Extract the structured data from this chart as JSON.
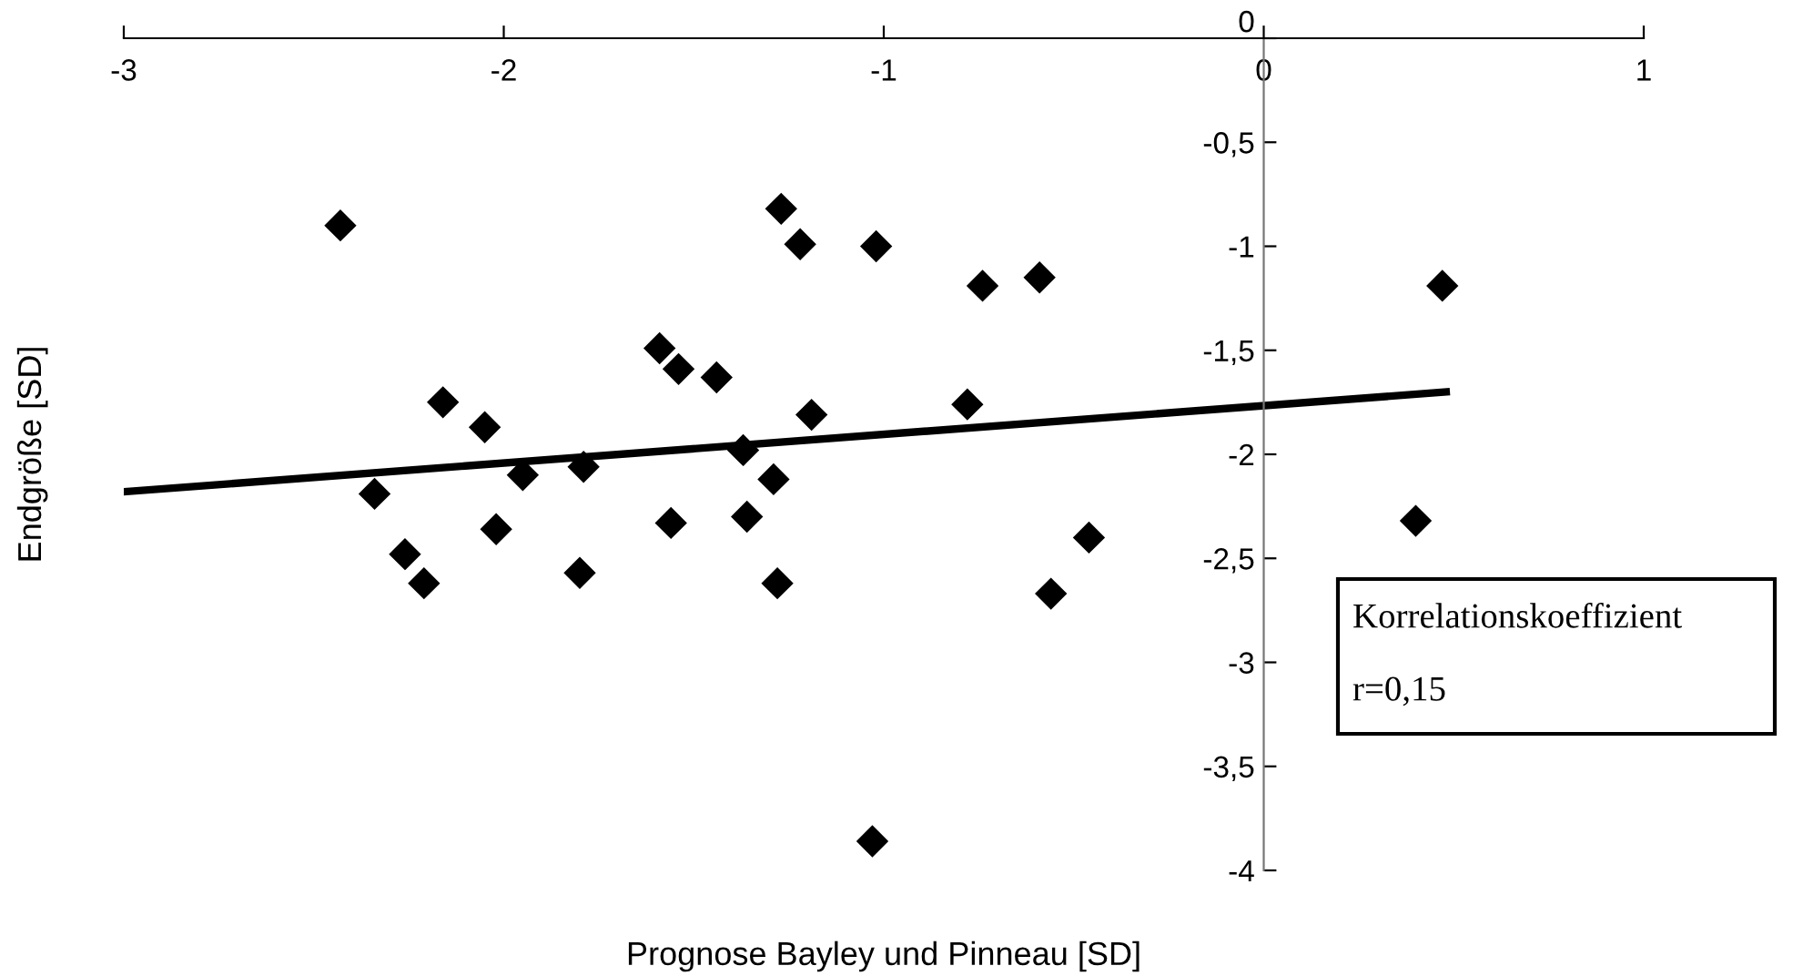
{
  "chart_data": {
    "type": "scatter",
    "xlabel": "Prognose Bayley und Pinneau [SD]",
    "ylabel": "Endgröße [SD]",
    "xlim": [
      -3,
      1
    ],
    "xticks": [
      -3,
      -2,
      -1,
      0,
      1
    ],
    "ylim": [
      -4,
      0
    ],
    "yticks": [
      0,
      {
        "value": -0.5,
        "label": "-0,5"
      },
      -1,
      {
        "value": -1.5,
        "label": "-1,5"
      },
      -2,
      {
        "value": -2.5,
        "label": "-2,5"
      },
      -3,
      {
        "value": -3.5,
        "label": "-3,5"
      },
      -4
    ],
    "grid": false,
    "marker": "diamond",
    "series": [
      {
        "color": "#000000",
        "x": [
          -2.43,
          -2.16,
          -2.05,
          -2.34,
          -1.95,
          -1.79,
          -2.26,
          -2.21,
          -2.02,
          -1.8,
          -1.27,
          -1.22,
          -1.02,
          -1.59,
          -1.54,
          -1.44,
          -1.19,
          -1.37,
          -1.29,
          -1.56,
          -1.36,
          -1.28,
          -0.74,
          -0.59,
          0.47,
          -0.78,
          0.4,
          -0.46,
          -0.56,
          -1.03
        ],
        "values": [
          -0.9,
          -1.75,
          -1.87,
          -2.19,
          -2.1,
          -2.06,
          -2.48,
          -2.62,
          -2.36,
          -2.57,
          -0.82,
          -0.99,
          -1.0,
          -1.49,
          -1.59,
          -1.63,
          -1.81,
          -1.98,
          -2.12,
          -2.33,
          -2.3,
          -2.62,
          -1.19,
          -1.15,
          -1.19,
          -1.76,
          -2.32,
          -2.4,
          -2.67,
          -3.86
        ]
      },
      {
        "type": "line",
        "color": "#000000",
        "x": [
          -3,
          0.48
        ],
        "values": [
          -2.18,
          -1.7
        ],
        "line_style": "solid",
        "marker": "none"
      }
    ],
    "annotations": [
      "Korrelationskoeffizient",
      "r=0,15"
    ]
  }
}
